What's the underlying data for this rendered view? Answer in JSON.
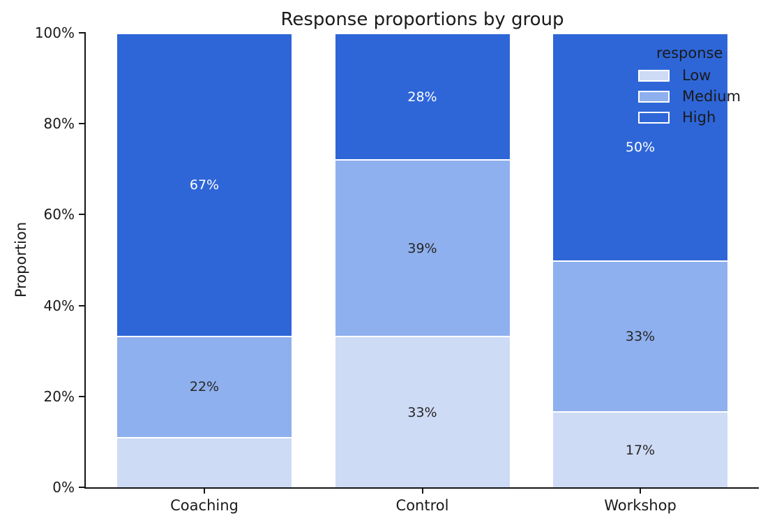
{
  "title": "Response proportions by group",
  "chart_data": {
    "type": "bar",
    "stacked": true,
    "title": "Response proportions by group",
    "xlabel": "",
    "ylabel": "Proportion",
    "categories": [
      "Coaching",
      "Control",
      "Workshop"
    ],
    "series": [
      {
        "name": "Low",
        "color": "#cedbf5",
        "label_color": "#262626",
        "values": [
          11.1,
          33.3,
          16.7
        ],
        "bar_labels": [
          null,
          "33%",
          "17%"
        ]
      },
      {
        "name": "Medium",
        "color": "#8fb0ee",
        "label_color": "#262626",
        "values": [
          22.2,
          38.9,
          33.3
        ],
        "bar_labels": [
          "22%",
          "39%",
          "33%"
        ]
      },
      {
        "name": "High",
        "color": "#2e66d8",
        "label_color": "#ffffff",
        "values": [
          66.7,
          27.8,
          50.0
        ],
        "bar_labels": [
          "67%",
          "28%",
          "50%"
        ]
      }
    ],
    "ylim": [
      0,
      100
    ],
    "yticks": {
      "values": [
        0,
        20,
        40,
        60,
        80,
        100
      ],
      "labels": [
        "0%",
        "20%",
        "40%",
        "60%",
        "80%",
        "100%"
      ]
    },
    "grid": false,
    "legend": {
      "title": "response",
      "position": "upper right",
      "entries": [
        "Low",
        "Medium",
        "High"
      ]
    }
  },
  "colors": {
    "axis": "#141414",
    "text": "#1a1a1a",
    "background": "#ffffff",
    "segment_edge": "#ffffff"
  }
}
